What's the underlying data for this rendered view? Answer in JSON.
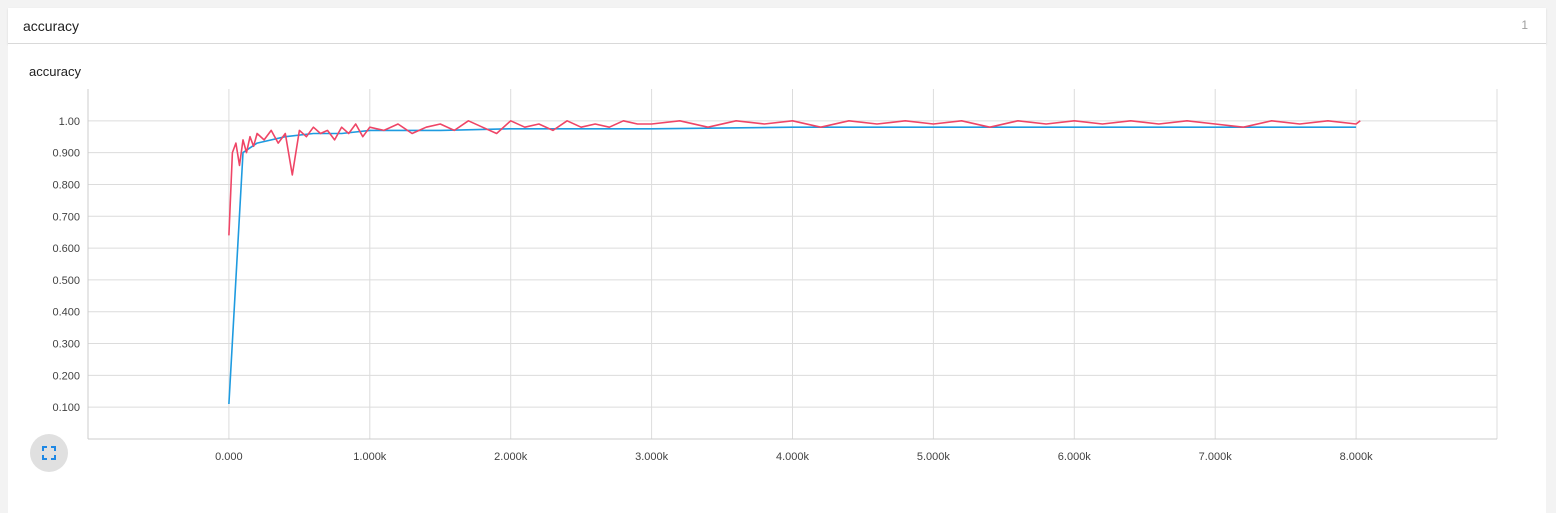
{
  "header": {
    "title": "accuracy",
    "count": "1"
  },
  "card": {
    "title": "accuracy"
  },
  "colors": {
    "train": "#ef4566",
    "smoothed": "#1e9be0",
    "grid": "#dcdcdc",
    "axis": "#cccccc"
  },
  "icons": {
    "expand": "fullscreen-icon"
  },
  "chart_data": {
    "type": "line",
    "title": "",
    "xlabel": "",
    "ylabel": "",
    "xlim": [
      -1000,
      9000
    ],
    "ylim": [
      0,
      1.1
    ],
    "grid": true,
    "x_ticks": [
      0,
      1000,
      2000,
      3000,
      4000,
      5000,
      6000,
      7000,
      8000
    ],
    "x_tick_labels": [
      "0.000",
      "1.000k",
      "2.000k",
      "3.000k",
      "4.000k",
      "5.000k",
      "6.000k",
      "7.000k",
      "8.000k"
    ],
    "y_ticks": [
      0.1,
      0.2,
      0.3,
      0.4,
      0.5,
      0.6,
      0.7,
      0.8,
      0.9,
      1.0
    ],
    "y_tick_labels": [
      "0.100",
      "0.200",
      "0.300",
      "0.400",
      "0.500",
      "0.600",
      "0.700",
      "0.800",
      "0.900",
      "1.00"
    ],
    "series": [
      {
        "color": "#ef4566",
        "x": [
          0,
          25,
          50,
          75,
          100,
          125,
          150,
          175,
          200,
          250,
          300,
          350,
          400,
          450,
          500,
          550,
          600,
          650,
          700,
          750,
          800,
          850,
          900,
          950,
          1000,
          1100,
          1200,
          1300,
          1400,
          1500,
          1600,
          1700,
          1800,
          1900,
          2000,
          2100,
          2200,
          2300,
          2400,
          2500,
          2600,
          2700,
          2800,
          2900,
          3000,
          3200,
          3400,
          3600,
          3800,
          4000,
          4200,
          4400,
          4600,
          4800,
          5000,
          5200,
          5400,
          5600,
          5800,
          6000,
          6200,
          6400,
          6600,
          6800,
          7000,
          7200,
          7400,
          7600,
          7800,
          8000,
          8030
        ],
        "y": [
          0.64,
          0.9,
          0.93,
          0.86,
          0.94,
          0.9,
          0.95,
          0.92,
          0.96,
          0.94,
          0.97,
          0.93,
          0.96,
          0.83,
          0.97,
          0.95,
          0.98,
          0.96,
          0.97,
          0.94,
          0.98,
          0.96,
          0.99,
          0.95,
          0.98,
          0.97,
          0.99,
          0.96,
          0.98,
          0.99,
          0.97,
          1.0,
          0.98,
          0.96,
          1.0,
          0.98,
          0.99,
          0.97,
          1.0,
          0.98,
          0.99,
          0.98,
          1.0,
          0.99,
          0.99,
          1.0,
          0.98,
          1.0,
          0.99,
          1.0,
          0.98,
          1.0,
          0.99,
          1.0,
          0.99,
          1.0,
          0.98,
          1.0,
          0.99,
          1.0,
          0.99,
          1.0,
          0.99,
          1.0,
          0.99,
          0.98,
          1.0,
          0.99,
          1.0,
          0.99,
          1.0
        ]
      },
      {
        "color": "#1e9be0",
        "x": [
          0,
          100,
          200,
          400,
          600,
          800,
          1000,
          1500,
          2000,
          2500,
          3000,
          4000,
          5000,
          6000,
          7000,
          8000
        ],
        "y": [
          0.11,
          0.9,
          0.93,
          0.95,
          0.96,
          0.96,
          0.97,
          0.97,
          0.975,
          0.975,
          0.975,
          0.98,
          0.98,
          0.98,
          0.98,
          0.98
        ]
      }
    ]
  }
}
